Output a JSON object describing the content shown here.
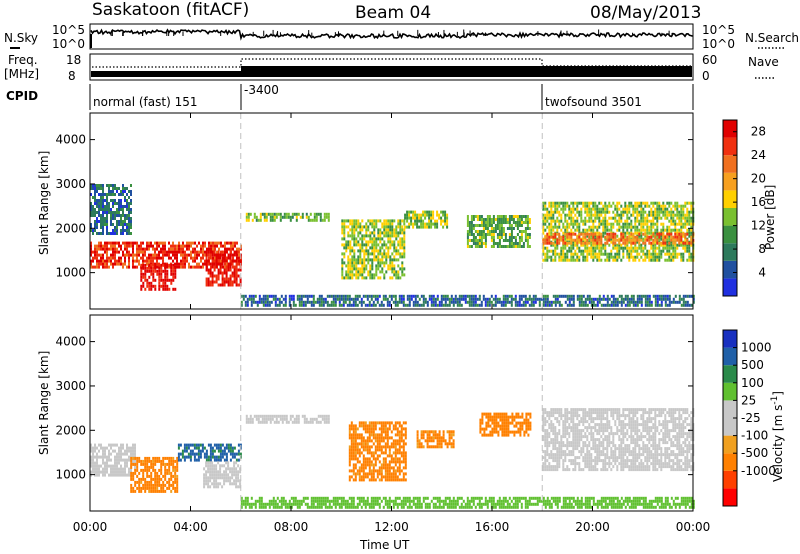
{
  "header": {
    "station": "Saskatoon (fitACF)",
    "beam": "Beam 04",
    "date": "08/May/2013"
  },
  "strip_labels": {
    "nsky": "N.Sky",
    "freq_line1": "Freq.",
    "freq_line2": "[MHz]",
    "cpid": "CPID",
    "nsearch": "N.Search",
    "nave": "Nave",
    "nsky_ticks": [
      "10^5",
      "10^0"
    ],
    "nsearch_ticks": [
      "10^5",
      "10^0"
    ],
    "freq_ticks": [
      "18",
      "8"
    ],
    "nave_ticks": [
      "60",
      "0"
    ],
    "cpid_segments": [
      {
        "label": "normal (fast) 151",
        "start_hour": 0
      },
      {
        "label": "-3400",
        "start_hour": 6
      },
      {
        "label": "twofsound 3501",
        "start_hour": 18
      }
    ]
  },
  "colors": {
    "power_scale": [
      "#2030e0",
      "#2050a0",
      "#2d7a5c",
      "#3a9040",
      "#7ac030",
      "#ffd000",
      "#f7a020",
      "#f07020",
      "#f03010",
      "#e00000"
    ],
    "velocity_scale": [
      "#ff0000",
      "#ff4000",
      "#ff8000",
      "#f0a020",
      "#c8c8c8",
      "#c8c8c8",
      "#60c030",
      "#2a8a4a",
      "#2060a8",
      "#1830c0"
    ]
  },
  "chart_data": [
    {
      "type": "heatmap",
      "name": "power",
      "title": "",
      "xlabel": "",
      "ylabel": "Slant Range [km]",
      "xlim_hours": [
        0,
        24
      ],
      "ylim_km": [
        180,
        4600
      ],
      "x_ticks": [
        "00:00",
        "04:00",
        "08:00",
        "12:00",
        "16:00",
        "20:00",
        "00:00"
      ],
      "y_ticks": [
        1000,
        2000,
        3000,
        4000
      ],
      "colorbar": {
        "label": "Power [dB]",
        "ticks": [
          4,
          8,
          12,
          16,
          20,
          24,
          28
        ],
        "range": [
          0,
          30
        ]
      },
      "dashed_time_markers_hours": [
        6,
        18
      ],
      "regions": [
        {
          "t0": 0.0,
          "t1": 6.0,
          "r0": 1100,
          "r1": 1700,
          "value": 26
        },
        {
          "t0": 2.0,
          "t1": 3.4,
          "r0": 600,
          "r1": 1200,
          "value": 28
        },
        {
          "t0": 4.6,
          "t1": 6.0,
          "r0": 700,
          "r1": 1500,
          "value": 28
        },
        {
          "t0": 0.0,
          "t1": 1.6,
          "r0": 1900,
          "r1": 3000,
          "value": 6
        },
        {
          "t0": 6.2,
          "t1": 9.5,
          "r0": 2150,
          "r1": 2350,
          "value": 12
        },
        {
          "t0": 10.0,
          "t1": 12.5,
          "r0": 900,
          "r1": 2200,
          "value": 14
        },
        {
          "t0": 12.5,
          "t1": 14.2,
          "r0": 2000,
          "r1": 2400,
          "value": 14
        },
        {
          "t0": 15.0,
          "t1": 17.5,
          "r0": 1600,
          "r1": 2300,
          "value": 12
        },
        {
          "t0": 18.0,
          "t1": 24.0,
          "r0": 1300,
          "r1": 2600,
          "value": 14
        },
        {
          "t0": 18.0,
          "t1": 24.0,
          "r0": 1650,
          "r1": 1900,
          "value": 22
        },
        {
          "t0": 6.0,
          "t1": 24.0,
          "r0": 250,
          "r1": 500,
          "value": 6
        }
      ]
    },
    {
      "type": "heatmap",
      "name": "velocity",
      "title": "",
      "xlabel": "Time UT",
      "ylabel": "Slant Range [km]",
      "xlim_hours": [
        0,
        24
      ],
      "ylim_km": [
        180,
        4600
      ],
      "x_ticks": [
        "00:00",
        "04:00",
        "08:00",
        "12:00",
        "16:00",
        "20:00",
        "00:00"
      ],
      "y_ticks": [
        1000,
        2000,
        3000,
        4000
      ],
      "colorbar": {
        "label": "Velocity [m s^-1]",
        "ticks": [
          "1000",
          "500",
          "100",
          "25",
          "-25",
          "-100",
          "-500",
          "-1000"
        ]
      },
      "dashed_time_markers_hours": [
        6,
        18
      ],
      "regions": [
        {
          "t0": 0.0,
          "t1": 1.8,
          "r0": 1000,
          "r1": 1700,
          "value": 0
        },
        {
          "t0": 1.6,
          "t1": 3.5,
          "r0": 600,
          "r1": 1400,
          "value": -150
        },
        {
          "t0": 3.5,
          "t1": 6.0,
          "r0": 1300,
          "r1": 1700,
          "value": 600
        },
        {
          "t0": 4.5,
          "t1": 6.0,
          "r0": 700,
          "r1": 1300,
          "value": 0
        },
        {
          "t0": 6.2,
          "t1": 9.5,
          "r0": 2150,
          "r1": 2350,
          "value": 0
        },
        {
          "t0": 10.3,
          "t1": 12.6,
          "r0": 900,
          "r1": 2200,
          "value": -150
        },
        {
          "t0": 13.0,
          "t1": 14.5,
          "r0": 1600,
          "r1": 2000,
          "value": -150
        },
        {
          "t0": 15.5,
          "t1": 17.5,
          "r0": 1900,
          "r1": 2400,
          "value": -300
        },
        {
          "t0": 18.0,
          "t1": 24.0,
          "r0": 1100,
          "r1": 2500,
          "value": 0
        },
        {
          "t0": 6.0,
          "t1": 24.0,
          "r0": 250,
          "r1": 500,
          "value": 50
        }
      ]
    }
  ]
}
